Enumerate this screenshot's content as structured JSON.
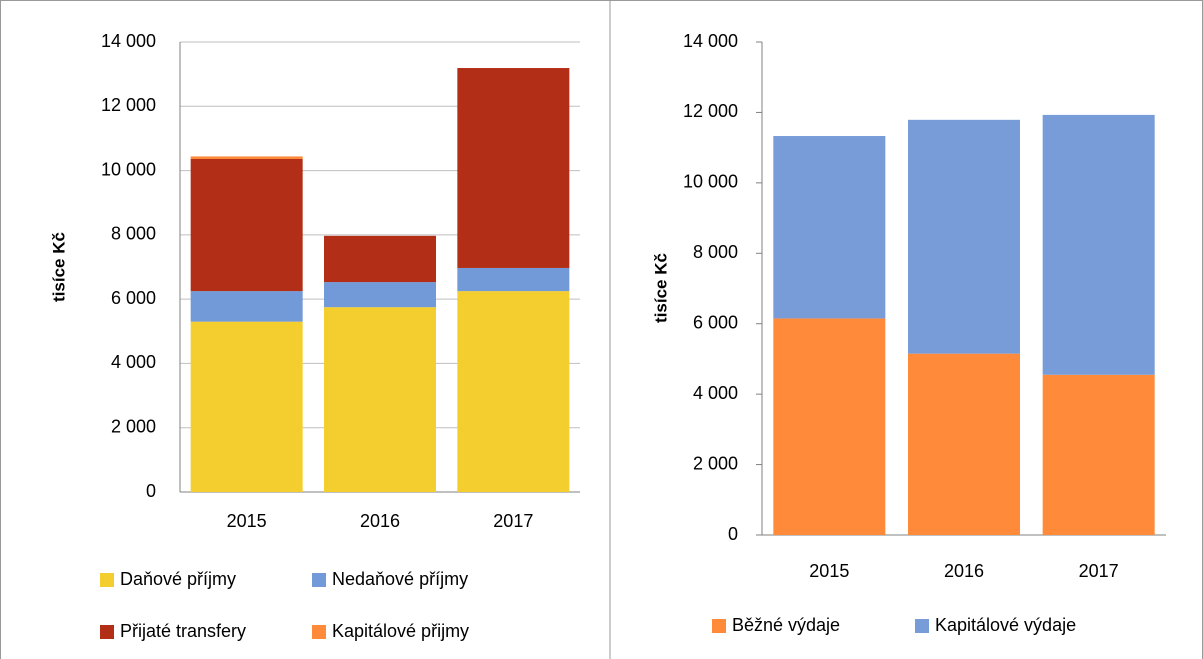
{
  "chart_data": [
    {
      "type": "bar",
      "stacked": true,
      "ylabel": "tisíce Kč",
      "categories": [
        "2015",
        "2016",
        "2017"
      ],
      "series": [
        {
          "name": "Daňové příjmy",
          "color": "#f4cd2f",
          "values": [
            5300,
            5750,
            6250
          ]
        },
        {
          "name": "Nedaňové příjmy",
          "color": "#7299d8",
          "values": [
            950,
            780,
            720
          ]
        },
        {
          "name": "Přijaté transfery",
          "color": "#b22e17",
          "values": [
            4110,
            1440,
            6220
          ]
        },
        {
          "name": "Kapitálové přijmy",
          "color": "#ff8a3a",
          "values": [
            80,
            0,
            0
          ]
        }
      ],
      "ylim": [
        0,
        14000
      ],
      "yticks": [
        0,
        {
          "value": 2000,
          "label": "2 000"
        },
        {
          "value": 4000,
          "label": "4 000"
        },
        {
          "value": 6000,
          "label": "6 000"
        },
        {
          "value": 8000,
          "label": "8 000"
        },
        {
          "value": 10000,
          "label": "10 000"
        },
        {
          "value": 12000,
          "label": "12 000"
        },
        {
          "value": 14000,
          "label": "14 000"
        }
      ],
      "grid": true,
      "legend": "bottom"
    },
    {
      "type": "bar",
      "stacked": true,
      "ylabel": "tisíce Kč",
      "categories": [
        "2015",
        "2016",
        "2017"
      ],
      "series": [
        {
          "name": "Běžné výdaje",
          "color": "#ff8a3a",
          "values": [
            6150,
            5150,
            4550
          ]
        },
        {
          "name": "Kapitálové výdaje",
          "color": "#779cd8",
          "values": [
            5180,
            6640,
            7380
          ]
        }
      ],
      "ylim": [
        0,
        14000
      ],
      "yticks": [
        0,
        {
          "value": 2000,
          "label": "2 000"
        },
        {
          "value": 4000,
          "label": "4 000"
        },
        {
          "value": 6000,
          "label": "6 000"
        },
        {
          "value": 8000,
          "label": "8 000"
        },
        {
          "value": 10000,
          "label": "10 000"
        },
        {
          "value": 12000,
          "label": "12 000"
        },
        {
          "value": 14000,
          "label": "14 000"
        }
      ],
      "grid": false,
      "legend": "bottom"
    }
  ]
}
